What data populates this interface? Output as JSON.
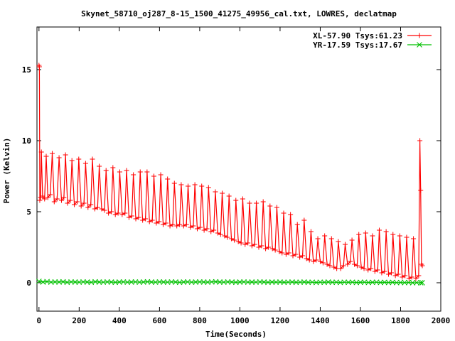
{
  "chart_data": {
    "type": "line",
    "title": "Skynet_58710_oj287_8-15_1500_41275_49956_cal.txt, LOWRES, declatmap",
    "xlabel": "Time(Seconds)",
    "ylabel": "Power (Kelvin)",
    "xlim": [
      -10,
      2000
    ],
    "ylim": [
      -2,
      18
    ],
    "xticks": [
      0,
      200,
      400,
      600,
      800,
      1000,
      1200,
      1400,
      1600,
      1800,
      2000
    ],
    "yticks": [
      0,
      5,
      10,
      15
    ],
    "grid": false,
    "legend_position": "top-right",
    "series": [
      {
        "name": "XL-57.90 Tsys:61.23",
        "color": "#ff0000",
        "marker": "plus",
        "points": [
          [
            0,
            15.3
          ],
          [
            2,
            15.2
          ],
          [
            4,
            5.8
          ],
          [
            8,
            6.0
          ],
          [
            12,
            9.2
          ],
          [
            18,
            6.1
          ],
          [
            28,
            5.9
          ],
          [
            36,
            8.9
          ],
          [
            44,
            6.0
          ],
          [
            56,
            6.2
          ],
          [
            66,
            9.1
          ],
          [
            76,
            5.7
          ],
          [
            90,
            5.9
          ],
          [
            100,
            8.8
          ],
          [
            112,
            5.8
          ],
          [
            124,
            6.0
          ],
          [
            132,
            9.0
          ],
          [
            142,
            5.6
          ],
          [
            156,
            5.8
          ],
          [
            164,
            8.6
          ],
          [
            176,
            5.5
          ],
          [
            190,
            5.7
          ],
          [
            198,
            8.7
          ],
          [
            210,
            5.4
          ],
          [
            224,
            5.6
          ],
          [
            232,
            8.4
          ],
          [
            244,
            5.3
          ],
          [
            258,
            5.5
          ],
          [
            266,
            8.7
          ],
          [
            278,
            5.2
          ],
          [
            292,
            5.3
          ],
          [
            300,
            8.2
          ],
          [
            312,
            5.2
          ],
          [
            326,
            5.1
          ],
          [
            334,
            7.9
          ],
          [
            346,
            4.9
          ],
          [
            360,
            5.0
          ],
          [
            368,
            8.1
          ],
          [
            380,
            4.8
          ],
          [
            394,
            4.9
          ],
          [
            402,
            7.8
          ],
          [
            414,
            4.8
          ],
          [
            428,
            4.9
          ],
          [
            436,
            7.9
          ],
          [
            448,
            4.6
          ],
          [
            462,
            4.7
          ],
          [
            470,
            7.6
          ],
          [
            482,
            4.5
          ],
          [
            496,
            4.6
          ],
          [
            504,
            7.8
          ],
          [
            516,
            4.4
          ],
          [
            530,
            4.5
          ],
          [
            538,
            7.8
          ],
          [
            550,
            4.3
          ],
          [
            564,
            4.4
          ],
          [
            572,
            7.5
          ],
          [
            584,
            4.2
          ],
          [
            598,
            4.3
          ],
          [
            606,
            7.6
          ],
          [
            618,
            4.1
          ],
          [
            632,
            4.2
          ],
          [
            640,
            7.3
          ],
          [
            652,
            4.0
          ],
          [
            666,
            4.1
          ],
          [
            674,
            7.0
          ],
          [
            686,
            4.0
          ],
          [
            700,
            4.1
          ],
          [
            708,
            6.9
          ],
          [
            720,
            4.0
          ],
          [
            734,
            4.1
          ],
          [
            742,
            6.8
          ],
          [
            754,
            3.9
          ],
          [
            768,
            4.0
          ],
          [
            776,
            6.9
          ],
          [
            788,
            3.8
          ],
          [
            802,
            3.9
          ],
          [
            810,
            6.8
          ],
          [
            822,
            3.7
          ],
          [
            836,
            3.8
          ],
          [
            844,
            6.7
          ],
          [
            856,
            3.6
          ],
          [
            870,
            3.7
          ],
          [
            878,
            6.4
          ],
          [
            890,
            3.5
          ],
          [
            904,
            3.4
          ],
          [
            912,
            6.3
          ],
          [
            924,
            3.3
          ],
          [
            938,
            3.2
          ],
          [
            946,
            6.1
          ],
          [
            958,
            3.1
          ],
          [
            972,
            3.0
          ],
          [
            980,
            5.8
          ],
          [
            992,
            2.9
          ],
          [
            1006,
            2.8
          ],
          [
            1014,
            5.9
          ],
          [
            1026,
            2.7
          ],
          [
            1040,
            2.8
          ],
          [
            1048,
            5.6
          ],
          [
            1060,
            2.6
          ],
          [
            1074,
            2.7
          ],
          [
            1082,
            5.6
          ],
          [
            1094,
            2.5
          ],
          [
            1108,
            2.6
          ],
          [
            1116,
            5.7
          ],
          [
            1128,
            2.4
          ],
          [
            1142,
            2.5
          ],
          [
            1150,
            5.4
          ],
          [
            1162,
            2.4
          ],
          [
            1176,
            2.3
          ],
          [
            1184,
            5.3
          ],
          [
            1196,
            2.2
          ],
          [
            1210,
            2.1
          ],
          [
            1218,
            4.9
          ],
          [
            1230,
            2.0
          ],
          [
            1244,
            2.1
          ],
          [
            1252,
            4.8
          ],
          [
            1264,
            1.9
          ],
          [
            1278,
            2.0
          ],
          [
            1286,
            4.1
          ],
          [
            1298,
            1.8
          ],
          [
            1312,
            1.9
          ],
          [
            1320,
            4.4
          ],
          [
            1332,
            1.7
          ],
          [
            1346,
            1.6
          ],
          [
            1354,
            3.6
          ],
          [
            1366,
            1.5
          ],
          [
            1380,
            1.6
          ],
          [
            1388,
            3.1
          ],
          [
            1400,
            1.5
          ],
          [
            1414,
            1.4
          ],
          [
            1422,
            3.3
          ],
          [
            1434,
            1.3
          ],
          [
            1448,
            1.2
          ],
          [
            1456,
            3.1
          ],
          [
            1468,
            1.1
          ],
          [
            1482,
            1.0
          ],
          [
            1490,
            2.9
          ],
          [
            1502,
            1.0
          ],
          [
            1516,
            1.2
          ],
          [
            1524,
            2.7
          ],
          [
            1536,
            1.3
          ],
          [
            1550,
            1.5
          ],
          [
            1558,
            3.0
          ],
          [
            1570,
            1.3
          ],
          [
            1584,
            1.2
          ],
          [
            1592,
            3.4
          ],
          [
            1604,
            1.1
          ],
          [
            1618,
            1.0
          ],
          [
            1626,
            3.5
          ],
          [
            1638,
            0.9
          ],
          [
            1652,
            1.0
          ],
          [
            1660,
            3.3
          ],
          [
            1672,
            0.8
          ],
          [
            1686,
            0.9
          ],
          [
            1694,
            3.7
          ],
          [
            1706,
            0.7
          ],
          [
            1720,
            0.8
          ],
          [
            1728,
            3.6
          ],
          [
            1740,
            0.6
          ],
          [
            1754,
            0.7
          ],
          [
            1762,
            3.4
          ],
          [
            1774,
            0.5
          ],
          [
            1788,
            0.6
          ],
          [
            1796,
            3.3
          ],
          [
            1808,
            0.4
          ],
          [
            1822,
            0.5
          ],
          [
            1830,
            3.2
          ],
          [
            1842,
            0.3
          ],
          [
            1856,
            0.4
          ],
          [
            1864,
            3.1
          ],
          [
            1876,
            0.3
          ],
          [
            1890,
            0.5
          ],
          [
            1896,
            10.0
          ],
          [
            1900,
            6.5
          ],
          [
            1904,
            1.3
          ],
          [
            1908,
            1.2
          ]
        ]
      },
      {
        "name": "YR-17.59 Tsys:17.67",
        "color": "#00c000",
        "marker": "cross",
        "points": [
          [
            0,
            0.1
          ],
          [
            20,
            0.05
          ],
          [
            40,
            0.08
          ],
          [
            60,
            0.04
          ],
          [
            80,
            0.06
          ],
          [
            100,
            0.05
          ],
          [
            120,
            0.07
          ],
          [
            140,
            0.03
          ],
          [
            160,
            0.06
          ],
          [
            180,
            0.05
          ],
          [
            200,
            0.04
          ],
          [
            220,
            0.06
          ],
          [
            240,
            0.05
          ],
          [
            260,
            0.03
          ],
          [
            280,
            0.07
          ],
          [
            300,
            0.05
          ],
          [
            320,
            0.04
          ],
          [
            340,
            0.06
          ],
          [
            360,
            0.05
          ],
          [
            380,
            0.03
          ],
          [
            400,
            0.05
          ],
          [
            420,
            0.06
          ],
          [
            440,
            0.04
          ],
          [
            460,
            0.05
          ],
          [
            480,
            0.06
          ],
          [
            500,
            0.04
          ],
          [
            520,
            0.05
          ],
          [
            540,
            0.07
          ],
          [
            560,
            0.05
          ],
          [
            580,
            0.04
          ],
          [
            600,
            0.06
          ],
          [
            620,
            0.05
          ],
          [
            640,
            0.04
          ],
          [
            660,
            0.06
          ],
          [
            680,
            0.05
          ],
          [
            700,
            0.03
          ],
          [
            720,
            0.05
          ],
          [
            740,
            0.06
          ],
          [
            760,
            0.04
          ],
          [
            780,
            0.05
          ],
          [
            800,
            0.06
          ],
          [
            820,
            0.05
          ],
          [
            840,
            0.04
          ],
          [
            860,
            0.06
          ],
          [
            880,
            0.07
          ],
          [
            900,
            0.05
          ],
          [
            920,
            0.04
          ],
          [
            940,
            0.06
          ],
          [
            960,
            0.05
          ],
          [
            980,
            0.03
          ],
          [
            1000,
            0.05
          ],
          [
            1020,
            0.06
          ],
          [
            1040,
            0.04
          ],
          [
            1060,
            0.05
          ],
          [
            1080,
            0.04
          ],
          [
            1100,
            0.06
          ],
          [
            1120,
            0.05
          ],
          [
            1140,
            0.03
          ],
          [
            1160,
            0.05
          ],
          [
            1180,
            0.04
          ],
          [
            1200,
            0.05
          ],
          [
            1220,
            0.03
          ],
          [
            1240,
            0.04
          ],
          [
            1260,
            0.05
          ],
          [
            1280,
            0.03
          ],
          [
            1300,
            0.04
          ],
          [
            1320,
            0.05
          ],
          [
            1340,
            0.03
          ],
          [
            1360,
            0.04
          ],
          [
            1380,
            0.02
          ],
          [
            1400,
            0.04
          ],
          [
            1420,
            0.03
          ],
          [
            1440,
            0.05
          ],
          [
            1460,
            0.03
          ],
          [
            1480,
            0.04
          ],
          [
            1500,
            0.02
          ],
          [
            1520,
            0.04
          ],
          [
            1540,
            0.03
          ],
          [
            1560,
            0.04
          ],
          [
            1580,
            0.02
          ],
          [
            1600,
            0.03
          ],
          [
            1620,
            0.04
          ],
          [
            1640,
            0.02
          ],
          [
            1660,
            0.03
          ],
          [
            1680,
            0.04
          ],
          [
            1700,
            0.02
          ],
          [
            1720,
            0.03
          ],
          [
            1740,
            0.02
          ],
          [
            1760,
            0.03
          ],
          [
            1780,
            0.01
          ],
          [
            1800,
            0.02
          ],
          [
            1820,
            0.01
          ],
          [
            1840,
            0.02
          ],
          [
            1860,
            0.0
          ],
          [
            1880,
            0.01
          ],
          [
            1900,
            0.0
          ],
          [
            1908,
            0.0
          ]
        ]
      }
    ]
  }
}
